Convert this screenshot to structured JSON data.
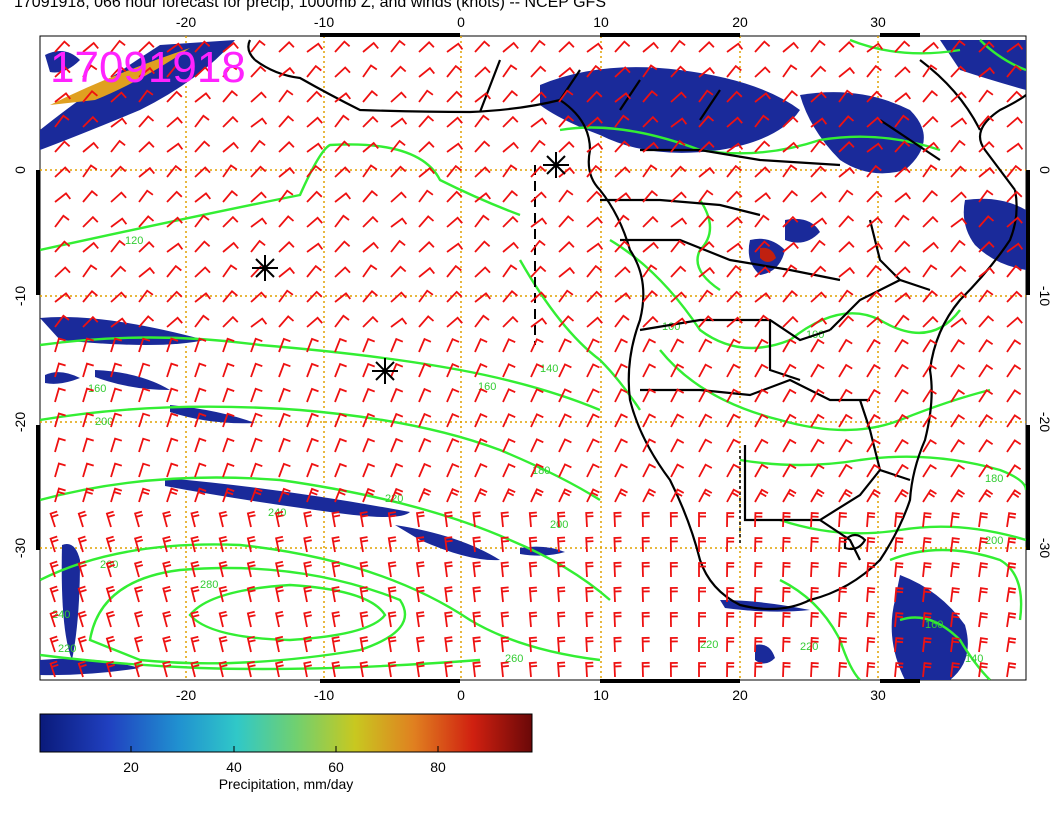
{
  "title": "17091918, 066 hour forecast for precip, 1000mb Z, and winds (knots) -- NCEP GFS",
  "stamp": "17091918",
  "map": {
    "lon_ticks": [
      "-20",
      "-10",
      "0",
      "10",
      "20",
      "30"
    ],
    "lat_ticks": [
      "0",
      "-10",
      "-20",
      "-30"
    ],
    "contour_labels": [
      "120",
      "160",
      "200",
      "240",
      "220",
      "260",
      "280",
      "240",
      "220",
      "260",
      "180",
      "200",
      "220",
      "160",
      "100",
      "100",
      "140",
      "180",
      "200",
      "160",
      "140",
      "220"
    ],
    "contour_color": "#33ee33",
    "barb_color": "#ee1111",
    "gridline_color": "#e0a000",
    "precip_color": "#1a2a9a"
  },
  "colorbar": {
    "tick_labels": [
      "20",
      "40",
      "60",
      "80"
    ],
    "label": "Precipitation, mm/day",
    "colors": [
      "#0a1a7a",
      "#2040c0",
      "#2090d0",
      "#30c8c8",
      "#70d070",
      "#c8c820",
      "#e08020",
      "#d02010",
      "#6a0808"
    ]
  }
}
